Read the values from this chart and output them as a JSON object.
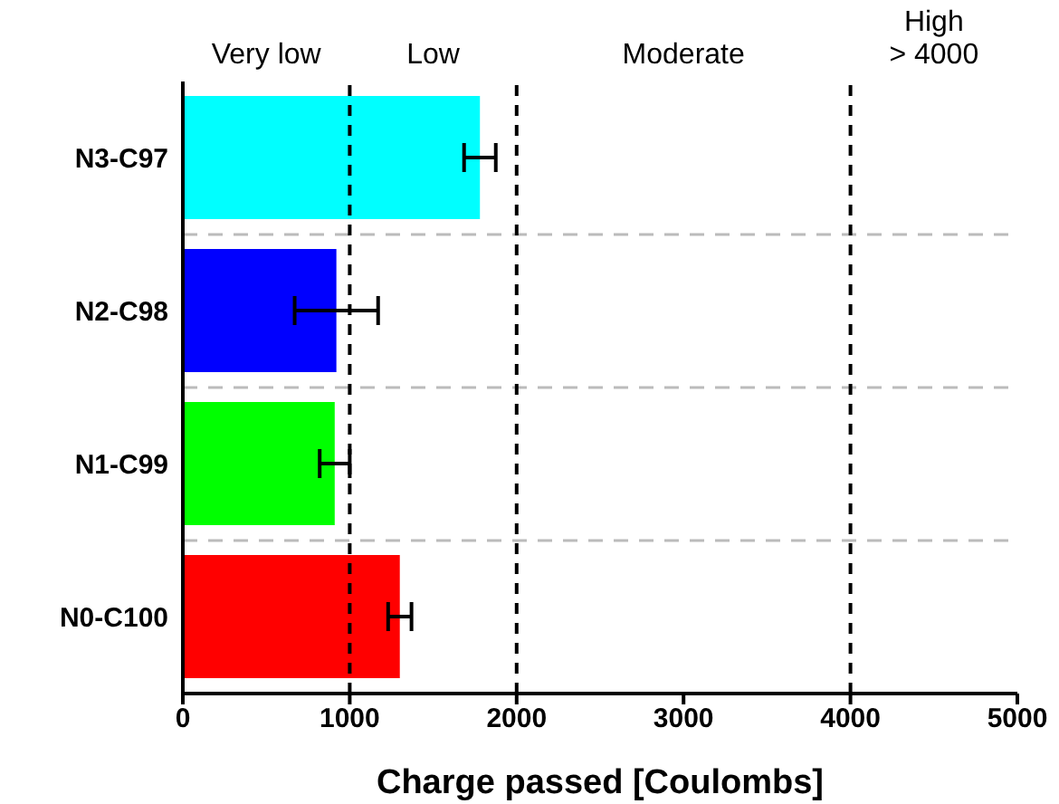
{
  "chart_data": {
    "type": "bar",
    "orientation": "horizontal",
    "xlabel": "Charge passed [Coulombs]",
    "categories": [
      "N3-C97",
      "N2-C98",
      "N1-C99",
      "N0-C100"
    ],
    "values": [
      1780,
      920,
      910,
      1300
    ],
    "errors": [
      95,
      250,
      90,
      70
    ],
    "colors": [
      "#00ffff",
      "#0000ff",
      "#00ff00",
      "#ff0000"
    ],
    "xlim": [
      0,
      5000
    ],
    "xticks": [
      0,
      1000,
      2000,
      3000,
      4000,
      5000
    ],
    "grid": "y",
    "ref_lines": [
      {
        "axis": "x",
        "value": 1000,
        "color": "#000000",
        "line_style": "dashed"
      },
      {
        "axis": "x",
        "value": 2000,
        "color": "#000000",
        "line_style": "dashed"
      },
      {
        "axis": "x",
        "value": 4000,
        "color": "#000000",
        "line_style": "dashed"
      }
    ],
    "annotations": [
      "Very low",
      "Low",
      "Moderate",
      "High > 4000"
    ]
  }
}
